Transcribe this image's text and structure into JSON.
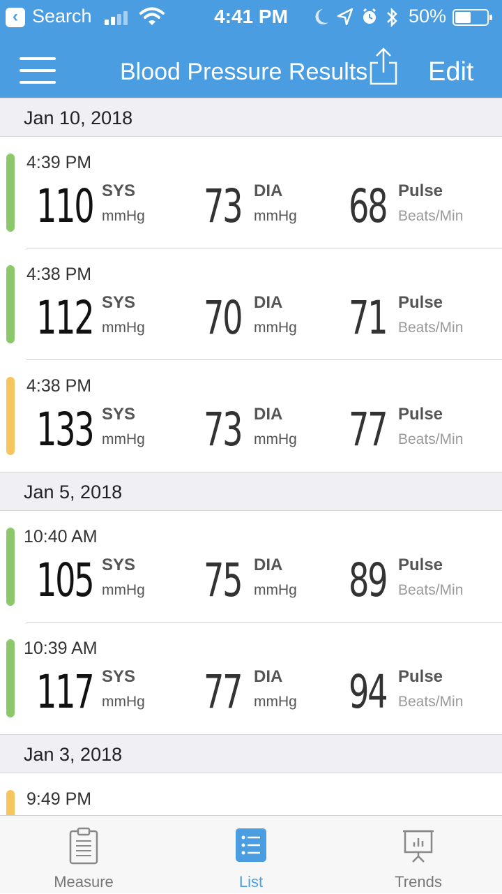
{
  "status_bar": {
    "carrier": "Search",
    "time": "4:41 PM",
    "battery": "50%"
  },
  "navbar": {
    "title": "Blood Pressure Results",
    "edit_label": "Edit"
  },
  "labels": {
    "sys": "SYS",
    "dia": "DIA",
    "pulse": "Pulse",
    "pressure_unit": "mmHg",
    "pulse_unit": "Beats/Min"
  },
  "groups": [
    {
      "date": "Jan 10, 2018",
      "readings": [
        {
          "time": "4:39 PM",
          "sys": "110",
          "dia": "73",
          "pulse": "68",
          "color": "#8cc86b"
        },
        {
          "time": "4:38 PM",
          "sys": "112",
          "dia": "70",
          "pulse": "71",
          "color": "#8cc86b"
        },
        {
          "time": "4:38 PM",
          "sys": "133",
          "dia": "73",
          "pulse": "77",
          "color": "#f6c55f"
        }
      ]
    },
    {
      "date": "Jan 5, 2018",
      "readings": [
        {
          "time": "10:40 AM",
          "sys": "105",
          "dia": "75",
          "pulse": "89",
          "color": "#8cc86b"
        },
        {
          "time": "10:39 AM",
          "sys": "117",
          "dia": "77",
          "pulse": "94",
          "color": "#8cc86b"
        }
      ]
    },
    {
      "date": "Jan 3, 2018",
      "readings": [
        {
          "time": "9:49 PM",
          "sys": "",
          "dia": "",
          "pulse": "",
          "color": "#f6c55f"
        }
      ]
    }
  ],
  "tabs": [
    {
      "label": "Measure",
      "icon": "clipboard-icon",
      "active": false
    },
    {
      "label": "List",
      "icon": "list-icon",
      "active": true
    },
    {
      "label": "Trends",
      "icon": "presentation-chart-icon",
      "active": false
    }
  ],
  "colors": {
    "brand": "#4a9de0",
    "normal": "#8cc86b",
    "elevated": "#f6c55f"
  }
}
